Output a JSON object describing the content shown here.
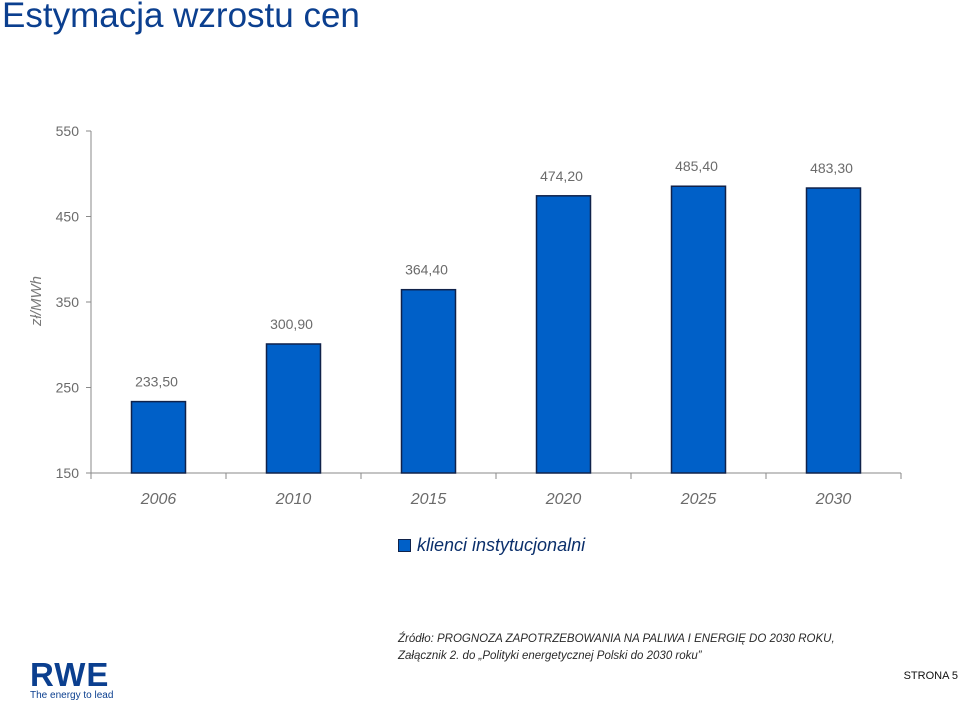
{
  "title": "Estymacja wzrostu cen",
  "chart_data": {
    "type": "bar",
    "categories": [
      "2006",
      "2010",
      "2015",
      "2020",
      "2025",
      "2030"
    ],
    "series": [
      {
        "name": "klienci instytucjonalni",
        "values": [
          233.5,
          300.9,
          364.4,
          474.2,
          485.4,
          483.3
        ],
        "labels": [
          "233,50",
          "300,90",
          "364,40",
          "474,20",
          "485,40",
          "483,30"
        ]
      }
    ],
    "ylabel": "zł/MWh",
    "xlabel": "",
    "ylim": [
      150,
      550
    ],
    "yticks": [
      "150",
      "250",
      "350",
      "450",
      "550"
    ],
    "grid": false,
    "legend": "bottom",
    "bar_color": "#0060c8"
  },
  "legend": {
    "label": "klienci instytucjonalni"
  },
  "source": {
    "line1": "Źródło: PROGNOZA ZAPOTRZEBOWANIA NA PALIWA I ENERGIĘ DO 2030 ROKU,",
    "line2": "Załącznik 2. do „Polityki energetycznej Polski do 2030 roku”"
  },
  "logo": {
    "mark": "RWE",
    "tagline": "The energy to lead"
  },
  "footer": {
    "page": "STRONA 5"
  }
}
